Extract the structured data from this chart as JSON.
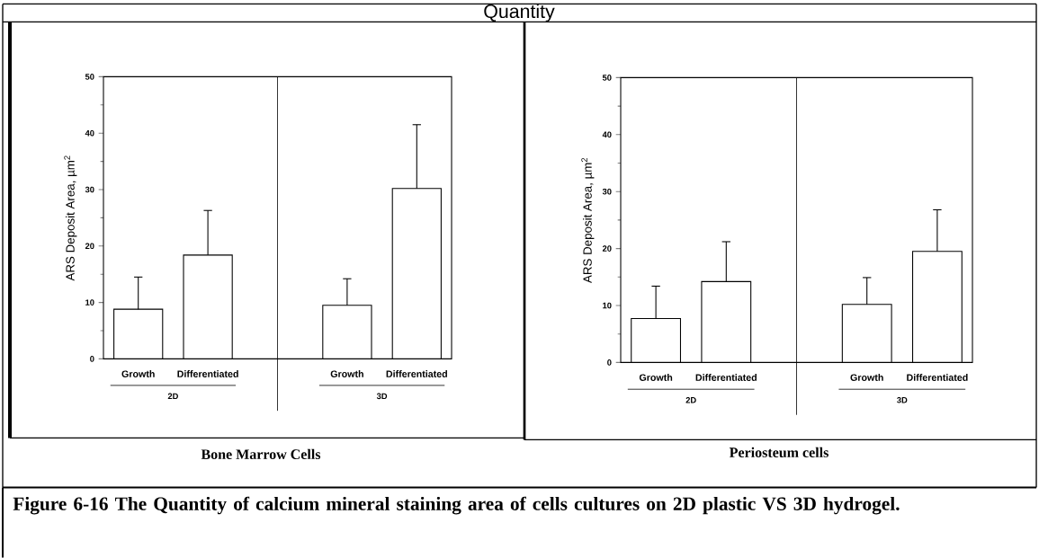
{
  "chart_data": [
    {
      "type": "bar",
      "title": "Bone Marrow Cells",
      "ylabel": "ARS Deposit Area, µm$^{2}$",
      "categories": [
        "Growth",
        "Differentiated",
        "Growth",
        "Differentiated"
      ],
      "values": [
        8.8,
        18.4,
        9.5,
        30.2
      ],
      "errors": [
        [
          8.8,
          14.5
        ],
        [
          18.4,
          26.3
        ],
        [
          9.5,
          14.2
        ],
        [
          30.2,
          41.5
        ]
      ],
      "color": "#ffffff",
      "ylim": [
        0,
        50
      ],
      "yticks": [
        0,
        10,
        20,
        30,
        40,
        50
      ],
      "grid": false,
      "annotations": [
        "2D",
        "3D",
        "Quantity",
        "Figure 6-16 The Quantity of calcium mineral staining area of cells cultures on 2D plastic VS 3D hydrogel."
      ]
    },
    {
      "type": "bar",
      "title": "Periosteum cells",
      "ylabel": "ARS Deposit Area, µm$^{2}$",
      "categories": [
        "Growth",
        "Differentiated",
        "Growth",
        "Differentiated"
      ],
      "values": [
        7.7,
        14.2,
        10.2,
        19.5
      ],
      "errors": [
        [
          7.7,
          13.4
        ],
        [
          14.2,
          21.2
        ],
        [
          10.2,
          14.9
        ],
        [
          19.5,
          26.8
        ]
      ],
      "color": "#ffffff",
      "ylim": [
        0,
        50
      ],
      "yticks": [
        0,
        10,
        20,
        30,
        40,
        50
      ],
      "grid": false,
      "annotations": [
        "2D",
        "3D"
      ]
    }
  ]
}
